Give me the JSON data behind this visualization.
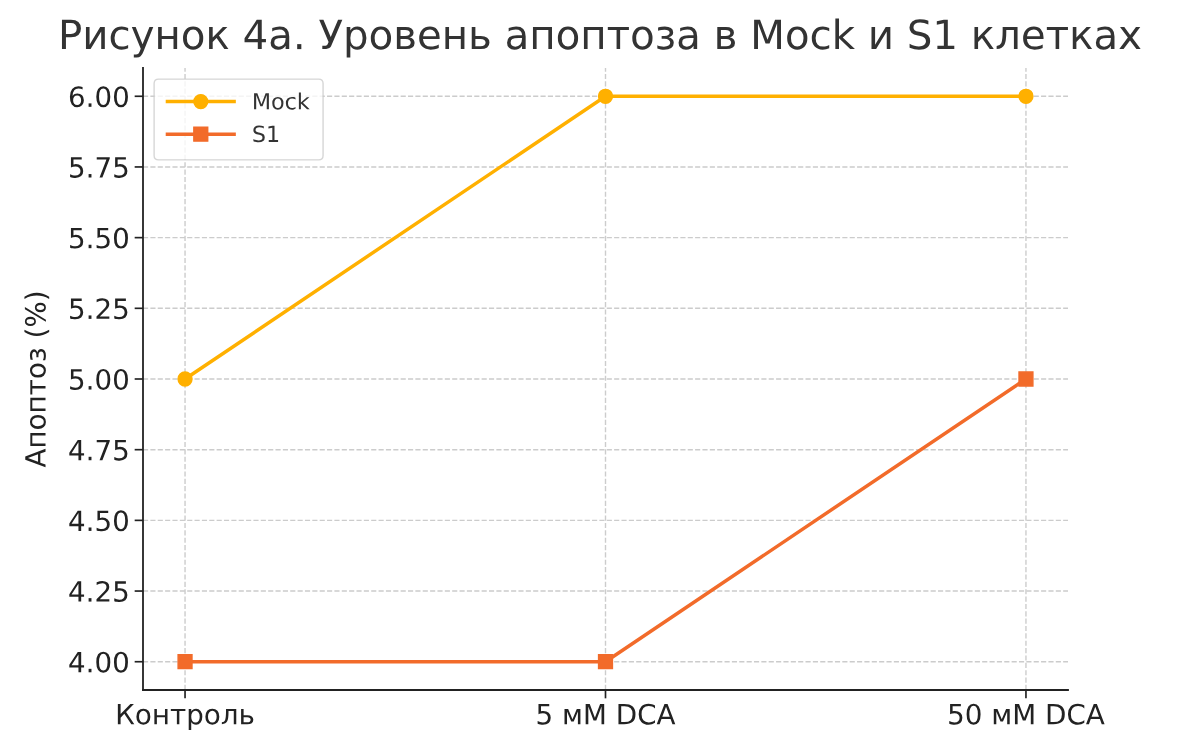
{
  "chart_data": {
    "type": "line",
    "title": "Рисунок 4a. Уровень апоптоза в Mock и S1 клетках",
    "ylabel": "Апоптоз (%)",
    "categories": [
      "Контроль",
      "5 мМ DCA",
      "50 мМ DCA"
    ],
    "series": [
      {
        "name": "Mock",
        "color": "#ffb000",
        "marker": "circle",
        "values": [
          5.0,
          6.0,
          6.0
        ]
      },
      {
        "name": "S1",
        "color": "#f26b2a",
        "marker": "square",
        "values": [
          4.0,
          4.0,
          5.0
        ]
      }
    ],
    "ylim": [
      3.9,
      6.1
    ],
    "yticks": [
      {
        "value": 4.0,
        "label": "4.00"
      },
      {
        "value": 4.25,
        "label": "4.25"
      },
      {
        "value": 4.5,
        "label": "4.50"
      },
      {
        "value": 4.75,
        "label": "4.75"
      },
      {
        "value": 5.0,
        "label": "5.00"
      },
      {
        "value": 5.25,
        "label": "5.25"
      },
      {
        "value": 5.5,
        "label": "5.50"
      },
      {
        "value": 5.75,
        "label": "5.75"
      },
      {
        "value": 6.0,
        "label": "6.00"
      }
    ],
    "grid": true,
    "legend": "top left",
    "line_style": "solid"
  }
}
